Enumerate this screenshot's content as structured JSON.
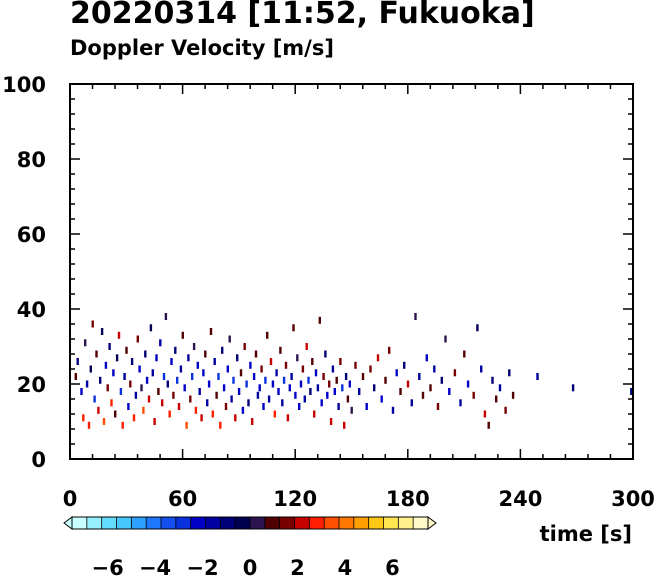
{
  "header": {
    "title": "20220314 [11:52, Fukuoka]",
    "subtitle": "Doppler Velocity [m/s]"
  },
  "chart_data": {
    "type": "scatter",
    "title": "20220314 [11:52, Fukuoka]",
    "subtitle": "Doppler Velocity [m/s]",
    "xlabel": "time [s]",
    "ylabel": "",
    "xlim": [
      0,
      300
    ],
    "ylim": [
      0,
      100
    ],
    "x_ticks": [
      "0",
      "60",
      "120",
      "180",
      "240",
      "300"
    ],
    "y_ticks": [
      "0",
      "20",
      "40",
      "60",
      "80",
      "100"
    ],
    "grid": false,
    "colorbar": {
      "label_ticks": [
        "−6",
        "−4",
        "−2",
        "0",
        "2",
        "4",
        "6"
      ],
      "range": [
        -7.5,
        7.5
      ],
      "colors": [
        "#c8ffff",
        "#96f0ff",
        "#64dcff",
        "#46c8ff",
        "#2ea0ff",
        "#1e78ff",
        "#1450f0",
        "#0a32dc",
        "#0000c8",
        "#0000a0",
        "#000078",
        "#000050",
        "#2d1450",
        "#500000",
        "#780000",
        "#c80000",
        "#ff1e00",
        "#ff5000",
        "#ff7800",
        "#ffa000",
        "#ffc814",
        "#ffe650",
        "#fff08c",
        "#fffac8"
      ]
    },
    "colors": {
      "negative": "#0a0a8c",
      "positive": "#e04010"
    },
    "series": [
      {
        "values": [
          [
            3,
            22,
            1.2
          ],
          [
            4,
            26,
            -0.8
          ],
          [
            6,
            18,
            -2.1
          ],
          [
            7,
            11,
            2.5
          ],
          [
            8,
            31,
            0.6
          ],
          [
            9,
            20,
            -1.5
          ],
          [
            10,
            9,
            3.1
          ],
          [
            11,
            24,
            -0.4
          ],
          [
            12,
            36,
            1.8
          ],
          [
            13,
            16,
            -2.8
          ],
          [
            14,
            28,
            0.9
          ],
          [
            15,
            13,
            2.2
          ],
          [
            16,
            21,
            -1.1
          ],
          [
            17,
            34,
            -0.3
          ],
          [
            18,
            10,
            3.4
          ],
          [
            19,
            25,
            -2.4
          ],
          [
            20,
            19,
            1.5
          ],
          [
            21,
            30,
            -0.7
          ],
          [
            22,
            15,
            2.8
          ],
          [
            23,
            23,
            -1.9
          ],
          [
            24,
            12,
            1.1
          ],
          [
            25,
            27,
            -0.5
          ],
          [
            26,
            33,
            2.0
          ],
          [
            27,
            18,
            -2.6
          ],
          [
            28,
            9,
            3.0
          ],
          [
            29,
            22,
            -1.3
          ],
          [
            30,
            29,
            0.8
          ],
          [
            31,
            14,
            -2.2
          ],
          [
            32,
            20,
            1.7
          ],
          [
            33,
            26,
            -0.9
          ],
          [
            34,
            11,
            2.6
          ],
          [
            35,
            17,
            -1.6
          ],
          [
            36,
            32,
            1.3
          ],
          [
            37,
            24,
            -2.0
          ],
          [
            38,
            19,
            0.4
          ],
          [
            39,
            13,
            3.2
          ],
          [
            40,
            28,
            -1.2
          ],
          [
            41,
            21,
            -2.5
          ],
          [
            42,
            16,
            1.9
          ],
          [
            43,
            35,
            -0.6
          ],
          [
            44,
            23,
            -1.8
          ],
          [
            45,
            10,
            2.4
          ],
          [
            46,
            27,
            -2.3
          ],
          [
            47,
            18,
            0.7
          ],
          [
            48,
            31,
            -1.4
          ],
          [
            49,
            15,
            2.1
          ],
          [
            50,
            22,
            -2.7
          ],
          [
            51,
            38,
            0.5
          ],
          [
            52,
            20,
            -1.0
          ],
          [
            53,
            12,
            2.9
          ],
          [
            54,
            26,
            -2.1
          ],
          [
            55,
            17,
            1.4
          ],
          [
            56,
            29,
            -0.8
          ],
          [
            57,
            21,
            -2.6
          ],
          [
            58,
            14,
            2.3
          ],
          [
            59,
            24,
            -1.5
          ],
          [
            60,
            33,
            0.9
          ],
          [
            61,
            19,
            -2.4
          ],
          [
            62,
            9,
            3.3
          ],
          [
            63,
            27,
            -1.7
          ],
          [
            64,
            16,
            1.6
          ],
          [
            65,
            22,
            -2.9
          ],
          [
            66,
            30,
            0.3
          ],
          [
            67,
            13,
            2.7
          ],
          [
            68,
            25,
            -2.0
          ],
          [
            69,
            18,
            -1.3
          ],
          [
            70,
            11,
            2.0
          ],
          [
            71,
            23,
            -2.2
          ],
          [
            72,
            28,
            1.0
          ],
          [
            73,
            15,
            -1.8
          ],
          [
            74,
            20,
            -2.5
          ],
          [
            75,
            34,
            0.7
          ],
          [
            76,
            12,
            2.5
          ],
          [
            77,
            26,
            -1.6
          ],
          [
            78,
            17,
            1.2
          ],
          [
            79,
            22,
            -2.8
          ],
          [
            80,
            9,
            3.0
          ],
          [
            81,
            29,
            -0.9
          ],
          [
            82,
            19,
            -2.3
          ],
          [
            83,
            14,
            1.8
          ],
          [
            84,
            24,
            -2.0
          ],
          [
            85,
            32,
            0.6
          ],
          [
            86,
            16,
            -1.4
          ],
          [
            87,
            21,
            -2.7
          ],
          [
            88,
            11,
            2.4
          ],
          [
            89,
            27,
            -1.1
          ],
          [
            90,
            18,
            -2.4
          ],
          [
            91,
            23,
            0.9
          ],
          [
            92,
            13,
            -1.9
          ],
          [
            93,
            30,
            1.5
          ],
          [
            94,
            20,
            -2.6
          ],
          [
            95,
            15,
            -1.2
          ],
          [
            96,
            25,
            -2.1
          ],
          [
            97,
            10,
            2.2
          ],
          [
            98,
            22,
            -2.5
          ],
          [
            99,
            28,
            0.8
          ],
          [
            100,
            17,
            -1.7
          ],
          [
            101,
            19,
            -2.3
          ],
          [
            102,
            24,
            1.3
          ],
          [
            103,
            14,
            -2.0
          ],
          [
            104,
            21,
            -2.8
          ],
          [
            105,
            33,
            1.1
          ],
          [
            106,
            16,
            -1.5
          ],
          [
            107,
            26,
            2.0
          ],
          [
            108,
            20,
            -2.4
          ],
          [
            109,
            12,
            2.6
          ],
          [
            110,
            23,
            -1.3
          ],
          [
            111,
            18,
            -2.2
          ],
          [
            112,
            29,
            0.7
          ],
          [
            113,
            15,
            -1.8
          ],
          [
            114,
            21,
            -2.6
          ],
          [
            115,
            25,
            1.4
          ],
          [
            116,
            11,
            2.3
          ],
          [
            117,
            19,
            -2.1
          ],
          [
            118,
            22,
            -1.6
          ],
          [
            119,
            35,
            1.0
          ],
          [
            120,
            17,
            -2.5
          ],
          [
            121,
            27,
            0.5
          ],
          [
            122,
            14,
            -1.9
          ],
          [
            123,
            20,
            -2.3
          ],
          [
            124,
            24,
            1.7
          ],
          [
            125,
            16,
            -1.4
          ],
          [
            126,
            30,
            2.1
          ],
          [
            127,
            21,
            -2.7
          ],
          [
            128,
            18,
            -1.1
          ],
          [
            129,
            26,
            1.2
          ],
          [
            130,
            12,
            2.4
          ],
          [
            131,
            23,
            -2.0
          ],
          [
            132,
            19,
            -1.5
          ],
          [
            133,
            37,
            0.8
          ],
          [
            134,
            15,
            -2.2
          ],
          [
            135,
            22,
            1.3
          ],
          [
            136,
            28,
            -0.9
          ],
          [
            137,
            17,
            -2.4
          ],
          [
            138,
            20,
            1.6
          ],
          [
            139,
            10,
            2.0
          ],
          [
            140,
            24,
            -1.7
          ],
          [
            141,
            18,
            -2.1
          ],
          [
            142,
            21,
            0.9
          ],
          [
            143,
            14,
            -1.3
          ],
          [
            144,
            26,
            1.5
          ],
          [
            145,
            19,
            -2.6
          ],
          [
            146,
            9,
            2.2
          ],
          [
            147,
            22,
            -1.0
          ],
          [
            148,
            16,
            1.1
          ],
          [
            149,
            20,
            -2.3
          ],
          [
            150,
            13,
            0.6
          ],
          [
            152,
            25,
            1.8
          ],
          [
            154,
            18,
            -1.6
          ],
          [
            156,
            22,
            0.7
          ],
          [
            158,
            14,
            -2.0
          ],
          [
            160,
            24,
            1.4
          ],
          [
            162,
            19,
            -1.2
          ],
          [
            164,
            27,
            2.1
          ],
          [
            166,
            16,
            -2.4
          ],
          [
            168,
            21,
            0.8
          ],
          [
            170,
            29,
            1.6
          ],
          [
            172,
            13,
            -1.5
          ],
          [
            174,
            23,
            -2.2
          ],
          [
            176,
            18,
            1.0
          ],
          [
            178,
            25,
            -0.7
          ],
          [
            180,
            20,
            1.9
          ],
          [
            182,
            15,
            -1.8
          ],
          [
            184,
            38,
            0.5
          ],
          [
            186,
            22,
            -1.3
          ],
          [
            188,
            17,
            1.2
          ],
          [
            190,
            27,
            -2.0
          ],
          [
            192,
            19,
            0.9
          ],
          [
            194,
            24,
            -1.6
          ],
          [
            196,
            14,
            1.7
          ],
          [
            198,
            21,
            -1.1
          ],
          [
            200,
            32,
            0.6
          ],
          [
            202,
            18,
            -2.1
          ],
          [
            205,
            23,
            1.4
          ],
          [
            208,
            15,
            -1.4
          ],
          [
            210,
            28,
            0.8
          ],
          [
            212,
            20,
            -1.9
          ],
          [
            215,
            17,
            1.3
          ],
          [
            217,
            35,
            -0.6
          ],
          [
            219,
            24,
            -1.5
          ],
          [
            221,
            12,
            2.0
          ],
          [
            223,
            9,
            1.1
          ],
          [
            225,
            21,
            -1.2
          ],
          [
            227,
            16,
            0.7
          ],
          [
            229,
            19,
            -1.8
          ],
          [
            232,
            13,
            1.5
          ],
          [
            234,
            23,
            -1.0
          ],
          [
            236,
            17,
            0.9
          ],
          [
            249,
            22,
            -1.4
          ],
          [
            268,
            19,
            -0.8
          ],
          [
            299,
            18,
            -1.1
          ]
        ]
      }
    ]
  }
}
